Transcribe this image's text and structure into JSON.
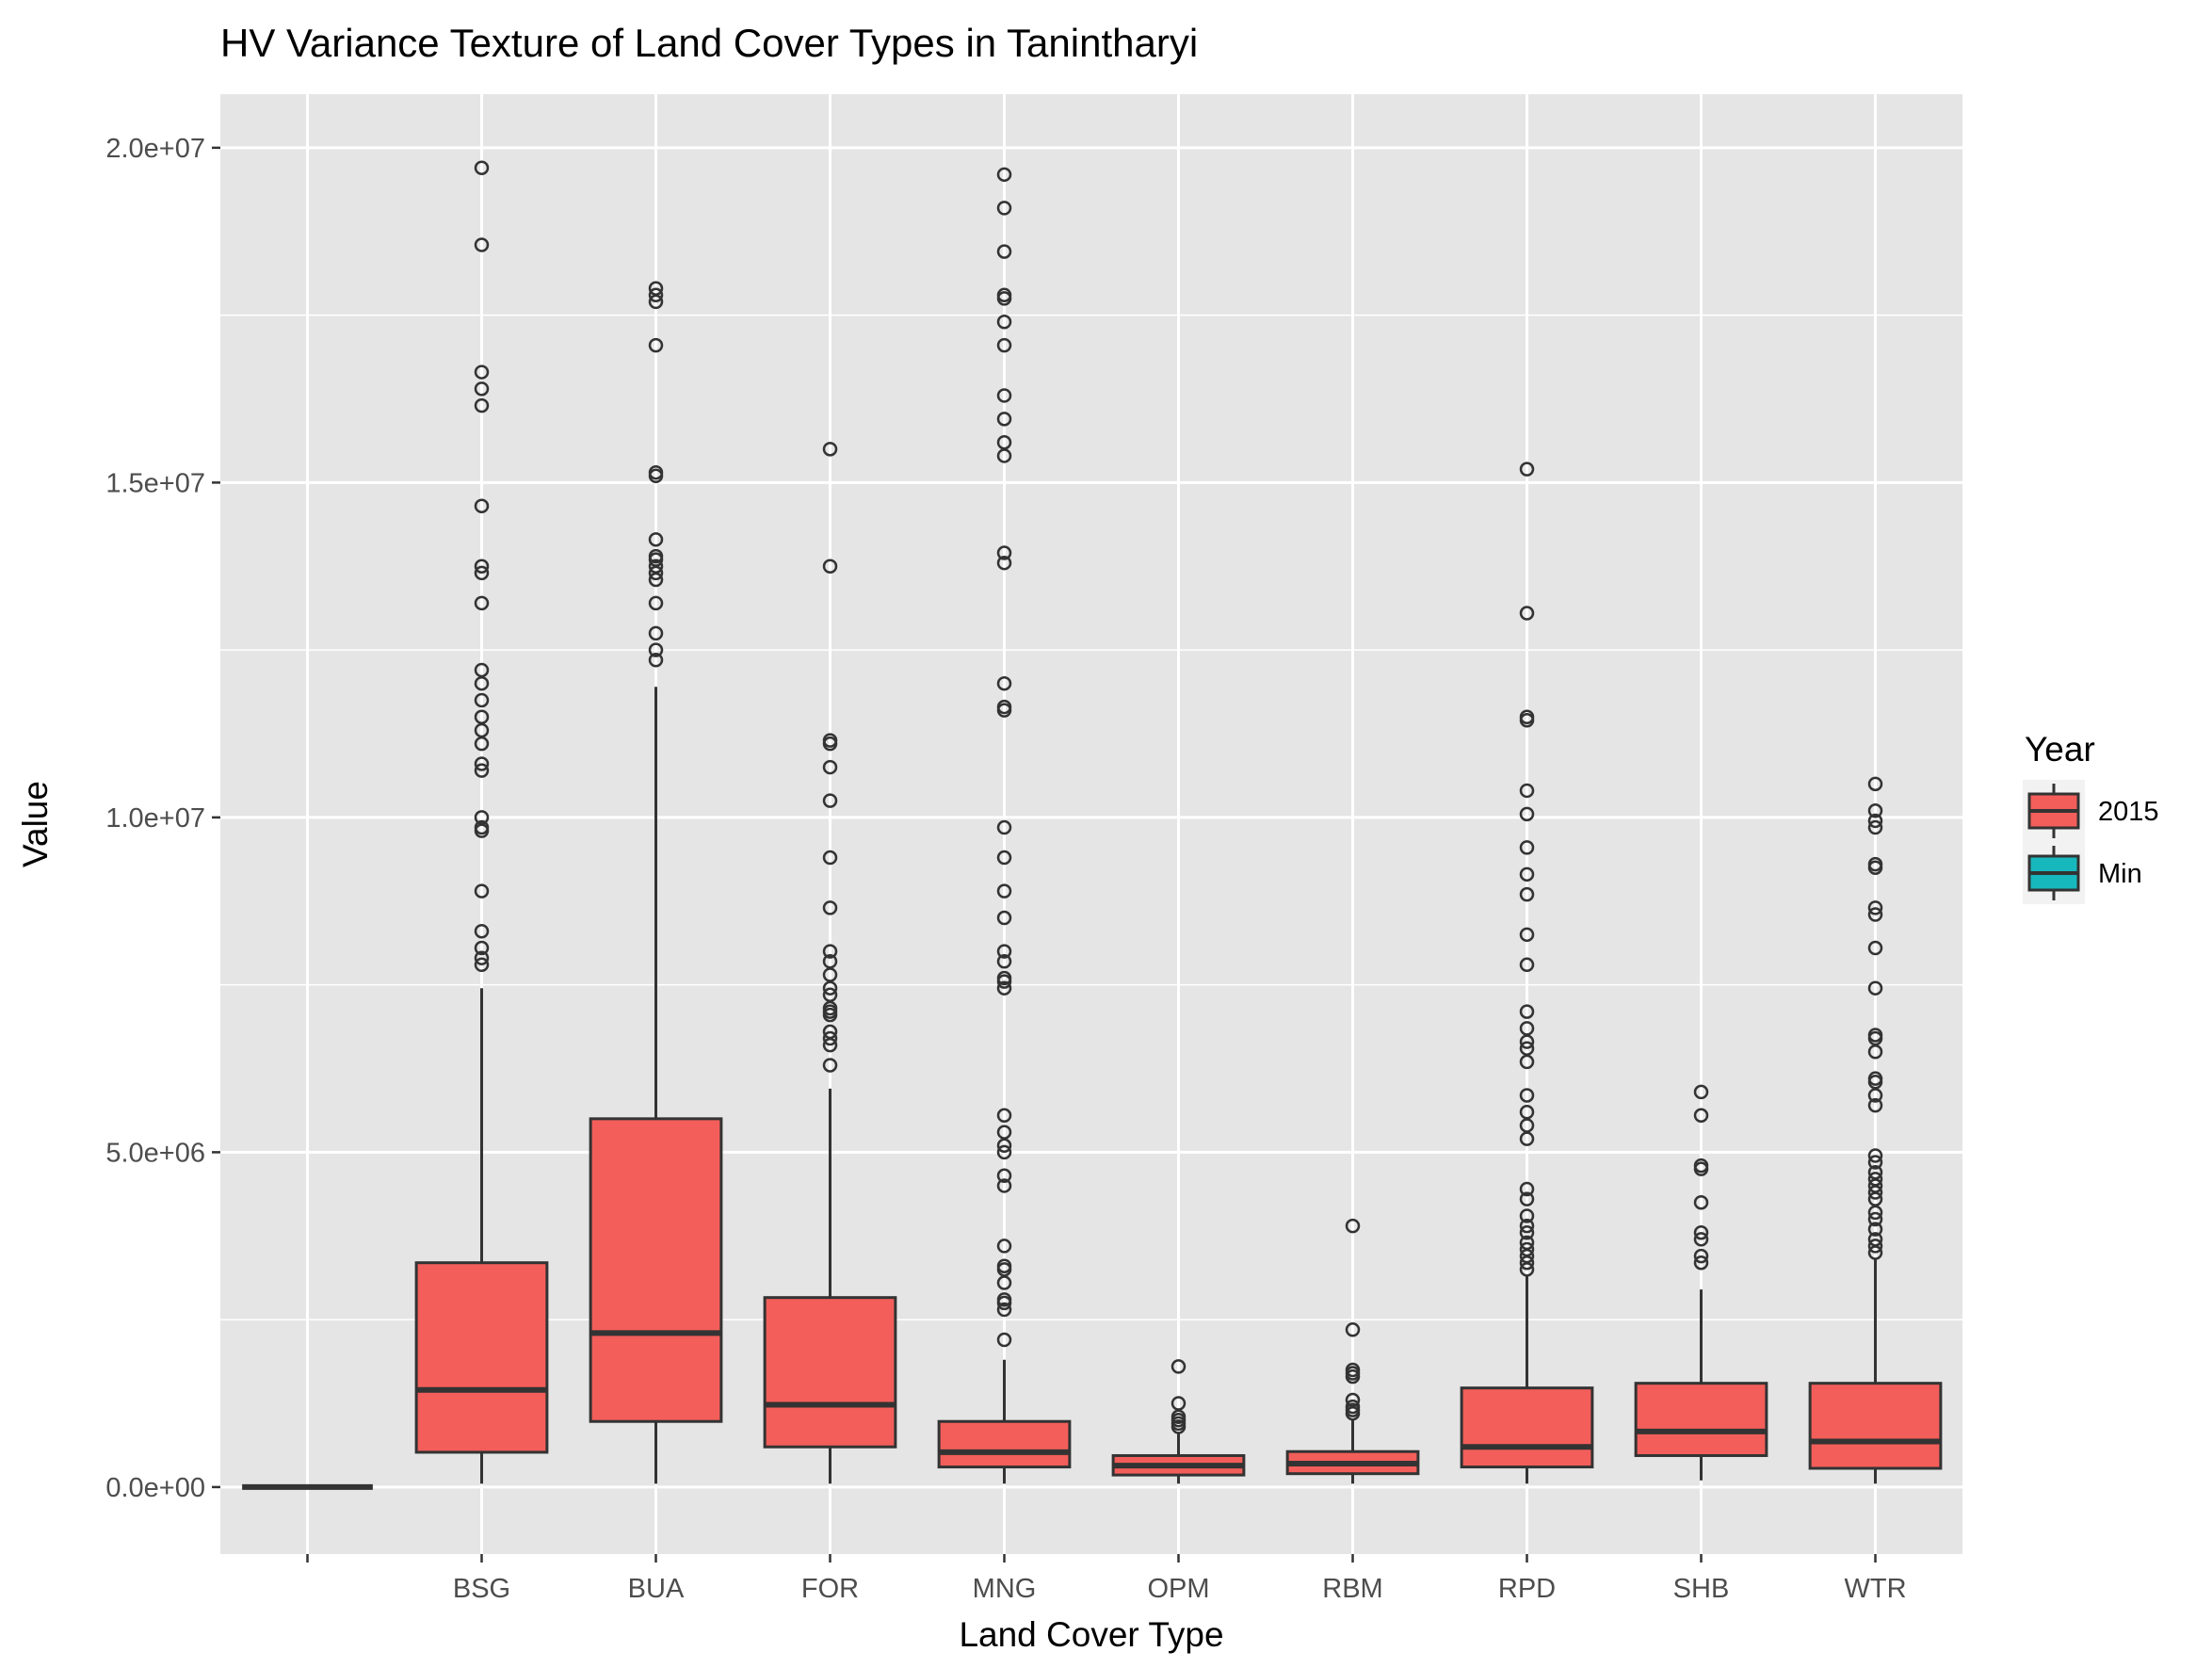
{
  "chart_data": {
    "type": "boxplot",
    "title": "HV Variance Texture of Land Cover Types in Tanintharyi",
    "xlabel": "Land Cover Type",
    "ylabel": "Value",
    "ylim": [
      -1000000,
      20800000
    ],
    "yticks": [
      0,
      5000000,
      10000000,
      15000000,
      20000000
    ],
    "ytick_labels": [
      "0.0e+00",
      "5.0e+06",
      "1.0e+07",
      "1.5e+07",
      "2.0e+07"
    ],
    "categories": [
      "",
      "BSG",
      "BUA",
      "FOR",
      "MNG",
      "OPM",
      "RBM",
      "RPD",
      "SHB",
      "WTR"
    ],
    "grid": true,
    "legend": {
      "title": "Year",
      "position": "right",
      "entries": [
        {
          "label": "2015",
          "color": "#F35E5A"
        },
        {
          "label": "Min",
          "color": "#17B8BD"
        }
      ]
    },
    "colors": {
      "2015": "#F35E5A",
      "Min": "#17B8BD",
      "panel": "#E5E5E5",
      "grid": "#FFFFFF"
    },
    "boxes": [
      {
        "category": "",
        "series": "Min",
        "min": 0,
        "q1": 0,
        "median": 0,
        "q3": 0,
        "max": 0,
        "outliers": []
      },
      {
        "category": "BSG",
        "series": "2015",
        "min": 50000,
        "q1": 520000,
        "median": 1450000,
        "q3": 3350000,
        "max": 7450000,
        "outliers": [
          7800000,
          7900000,
          8050000,
          8300000,
          8900000,
          9800000,
          9850000,
          10000000,
          10700000,
          10800000,
          11100000,
          11300000,
          11500000,
          11750000,
          12000000,
          12200000,
          13200000,
          13650000,
          13750000,
          14650000,
          16150000,
          16400000,
          16650000,
          18550000,
          19700000
        ]
      },
      {
        "category": "BUA",
        "series": "2015",
        "min": 50000,
        "q1": 980000,
        "median": 2300000,
        "q3": 5500000,
        "max": 11950000,
        "outliers": [
          12350000,
          12500000,
          12750000,
          13200000,
          13550000,
          13650000,
          13750000,
          13850000,
          13900000,
          14150000,
          15100000,
          15150000,
          17050000,
          17700000,
          17800000,
          17900000
        ]
      },
      {
        "category": "FOR",
        "series": "2015",
        "min": 50000,
        "q1": 600000,
        "median": 1230000,
        "q3": 2830000,
        "max": 5950000,
        "outliers": [
          6300000,
          6600000,
          6700000,
          6800000,
          7050000,
          7100000,
          7150000,
          7350000,
          7450000,
          7650000,
          7850000,
          8000000,
          8650000,
          9400000,
          10250000,
          10750000,
          11100000,
          11150000,
          13750000,
          15500000
        ]
      },
      {
        "category": "MNG",
        "series": "2015",
        "min": 50000,
        "q1": 300000,
        "median": 520000,
        "q3": 980000,
        "max": 1900000,
        "outliers": [
          2200000,
          2650000,
          2750000,
          2800000,
          3050000,
          3250000,
          3300000,
          3600000,
          4500000,
          4650000,
          5000000,
          5100000,
          5300000,
          5550000,
          7450000,
          7550000,
          7600000,
          7850000,
          8000000,
          8500000,
          8900000,
          9400000,
          9850000,
          11600000,
          11650000,
          12000000,
          13800000,
          13950000,
          15400000,
          15600000,
          15950000,
          16300000,
          17050000,
          17400000,
          17750000,
          17800000,
          18450000,
          19100000,
          19600000
        ]
      },
      {
        "category": "OPM",
        "series": "2015",
        "min": 50000,
        "q1": 180000,
        "median": 320000,
        "q3": 470000,
        "max": 800000,
        "outliers": [
          900000,
          950000,
          1000000,
          1050000,
          1250000,
          1800000
        ]
      },
      {
        "category": "RBM",
        "series": "2015",
        "min": 50000,
        "q1": 200000,
        "median": 350000,
        "q3": 530000,
        "max": 1000000,
        "outliers": [
          1100000,
          1150000,
          1200000,
          1300000,
          1650000,
          1700000,
          1750000,
          2350000,
          3900000
        ]
      },
      {
        "category": "RPD",
        "series": "2015",
        "min": 50000,
        "q1": 300000,
        "median": 600000,
        "q3": 1480000,
        "max": 3150000,
        "outliers": [
          3250000,
          3350000,
          3450000,
          3550000,
          3650000,
          3800000,
          3900000,
          4050000,
          4300000,
          4450000,
          5200000,
          5400000,
          5600000,
          5850000,
          6350000,
          6550000,
          6650000,
          6850000,
          7100000,
          7800000,
          8250000,
          8850000,
          9150000,
          9550000,
          10050000,
          10400000,
          11450000,
          11500000,
          13050000,
          15200000
        ]
      },
      {
        "category": "SHB",
        "series": "2015",
        "min": 100000,
        "q1": 470000,
        "median": 830000,
        "q3": 1550000,
        "max": 2950000,
        "outliers": [
          3350000,
          3450000,
          3700000,
          3800000,
          4250000,
          4750000,
          4800000,
          5550000,
          5900000
        ]
      },
      {
        "category": "WTR",
        "series": "2015",
        "min": 50000,
        "q1": 280000,
        "median": 680000,
        "q3": 1550000,
        "max": 3400000,
        "outliers": [
          3500000,
          3600000,
          3700000,
          3850000,
          4000000,
          4100000,
          4300000,
          4400000,
          4500000,
          4600000,
          4700000,
          4850000,
          4950000,
          5700000,
          5850000,
          6050000,
          6100000,
          6500000,
          6700000,
          6750000,
          7450000,
          8050000,
          8550000,
          8650000,
          9250000,
          9300000,
          9850000,
          9950000,
          10100000,
          10500000
        ]
      }
    ]
  }
}
